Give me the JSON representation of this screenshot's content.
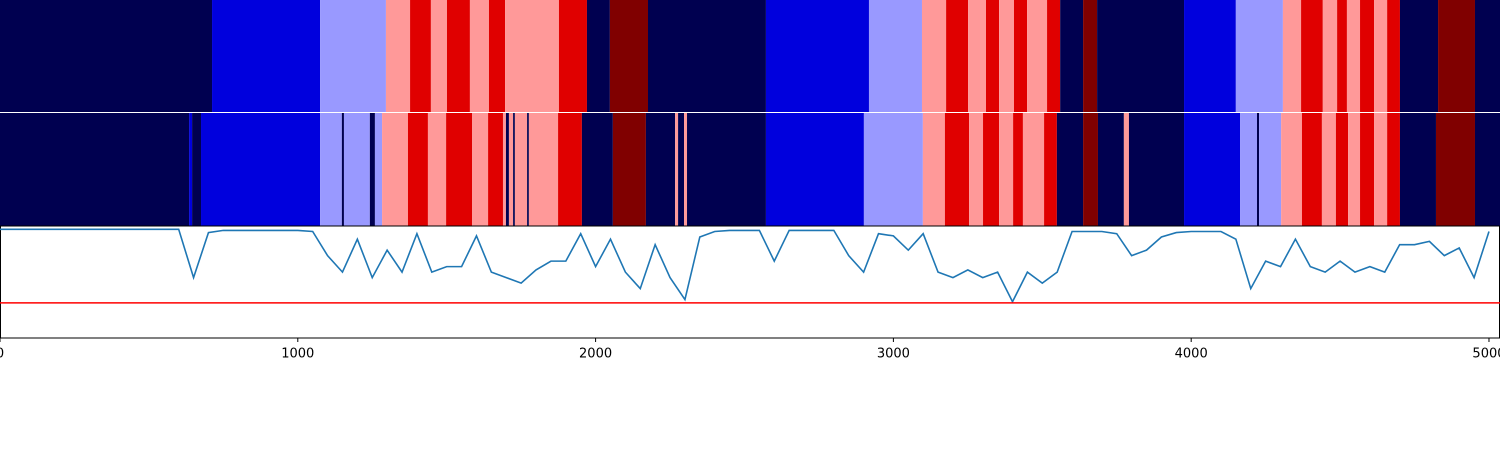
{
  "chart_data": {
    "type": "segmentation",
    "xlim": [
      0,
      5037
    ],
    "xticks": [
      0,
      1000,
      2000,
      3000,
      4000,
      5000
    ],
    "rows": [
      {
        "edges": [
          0,
          712,
          1075,
          1296,
          1377,
          1447,
          1501,
          1578,
          1642,
          1696,
          1877,
          1971,
          2048,
          2176,
          2572,
          2918,
          3096,
          3177,
          3251,
          3311,
          3355,
          3405,
          3449,
          3516,
          3560,
          3637,
          3684,
          3976,
          4150,
          4308,
          4369,
          4442,
          4490,
          4523,
          4567,
          4614,
          4658,
          4701,
          4829,
          4953,
          5037
        ],
        "colors": [
          "#000050",
          "#0000dd",
          "#9999ff",
          "#ff9999",
          "#e00000",
          "#ff9999",
          "#e00000",
          "#ff9999",
          "#e00000",
          "#ff9999",
          "#e00000",
          "#000050",
          "#800000",
          "#000050",
          "#0000dd",
          "#9999ff",
          "#ff9999",
          "#e00000",
          "#ff9999",
          "#e00000",
          "#ff9999",
          "#e00000",
          "#ff9999",
          "#e00000",
          "#000050",
          "#800000",
          "#000050",
          "#0000dd",
          "#9999ff",
          "#ff9999",
          "#e00000",
          "#ff9999",
          "#e00000",
          "#ff9999",
          "#e00000",
          "#ff9999",
          "#e00000",
          "#000050",
          "#800000",
          "#000050"
        ]
      },
      {
        "edges": [
          0,
          635,
          645,
          675,
          1075,
          1148,
          1155,
          1242,
          1259,
          1283,
          1370,
          1437,
          1498,
          1585,
          1639,
          1689,
          1699,
          1709,
          1723,
          1729,
          1770,
          1776,
          1874,
          1954,
          2058,
          2169,
          2267,
          2277,
          2297,
          2307,
          2572,
          2901,
          3099,
          3173,
          3254,
          3301,
          3355,
          3402,
          3435,
          3506,
          3549,
          3637,
          3687,
          3774,
          3791,
          3976,
          4164,
          4221,
          4228,
          4302,
          4372,
          4439,
          4486,
          4527,
          4567,
          4614,
          4658,
          4701,
          4822,
          4953,
          5037
        ],
        "colors": [
          "#000050",
          "#0000dd",
          "#000050",
          "#0000dd",
          "#9999ff",
          "#000050",
          "#9999ff",
          "#000050",
          "#9999ff",
          "#ff9999",
          "#e00000",
          "#ff9999",
          "#e00000",
          "#ff9999",
          "#e00000",
          "#ff9999",
          "#000050",
          "#ff9999",
          "#000050",
          "#ff9999",
          "#000050",
          "#ff9999",
          "#e00000",
          "#000050",
          "#800000",
          "#000050",
          "#ff9999",
          "#000050",
          "#ff9999",
          "#000050",
          "#0000dd",
          "#9999ff",
          "#ff9999",
          "#e00000",
          "#ff9999",
          "#e00000",
          "#ff9999",
          "#e00000",
          "#ff9999",
          "#e00000",
          "#000050",
          "#800000",
          "#000050",
          "#ff9999",
          "#000050",
          "#0000dd",
          "#9999ff",
          "#000050",
          "#9999ff",
          "#ff9999",
          "#e00000",
          "#ff9999",
          "#e00000",
          "#ff9999",
          "#e00000",
          "#ff9999",
          "#e00000",
          "#000050",
          "#800000",
          "#000050"
        ]
      }
    ],
    "ylim": [
      0,
      1.02
    ],
    "series": [
      {
        "color": "#1f77b4",
        "x": [
          0,
          50,
          100,
          150,
          200,
          250,
          300,
          350,
          400,
          450,
          500,
          550,
          600,
          650,
          700,
          750,
          800,
          850,
          900,
          950,
          1000,
          1050,
          1100,
          1150,
          1200,
          1250,
          1300,
          1350,
          1400,
          1450,
          1500,
          1550,
          1600,
          1650,
          1700,
          1750,
          1800,
          1850,
          1900,
          1950,
          2000,
          2050,
          2100,
          2150,
          2200,
          2250,
          2300,
          2350,
          2400,
          2450,
          2500,
          2550,
          2600,
          2650,
          2700,
          2750,
          2800,
          2850,
          2900,
          2950,
          3000,
          3050,
          3100,
          3150,
          3200,
          3250,
          3300,
          3350,
          3400,
          3450,
          3500,
          3550,
          3600,
          3650,
          3700,
          3750,
          3800,
          3850,
          3900,
          3950,
          4000,
          4050,
          4100,
          4150,
          4200,
          4250,
          4300,
          4350,
          4400,
          4450,
          4500,
          4550,
          4600,
          4650,
          4700,
          4750,
          4800,
          4850,
          4900,
          4950,
          5000
        ],
        "values": [
          0.99,
          0.99,
          0.99,
          0.99,
          0.99,
          0.99,
          0.99,
          0.99,
          0.99,
          0.99,
          0.99,
          0.99,
          0.99,
          0.55,
          0.96,
          0.98,
          0.98,
          0.98,
          0.98,
          0.98,
          0.98,
          0.97,
          0.75,
          0.6,
          0.9,
          0.55,
          0.8,
          0.6,
          0.95,
          0.6,
          0.65,
          0.65,
          0.93,
          0.6,
          0.55,
          0.5,
          0.62,
          0.7,
          0.7,
          0.95,
          0.65,
          0.9,
          0.6,
          0.45,
          0.85,
          0.55,
          0.35,
          0.92,
          0.97,
          0.98,
          0.98,
          0.98,
          0.7,
          0.98,
          0.98,
          0.98,
          0.98,
          0.75,
          0.6,
          0.95,
          0.93,
          0.8,
          0.95,
          0.6,
          0.55,
          0.62,
          0.55,
          0.6,
          0.33,
          0.6,
          0.5,
          0.6,
          0.97,
          0.97,
          0.97,
          0.95,
          0.75,
          0.8,
          0.92,
          0.96,
          0.97,
          0.97,
          0.97,
          0.9,
          0.45,
          0.7,
          0.65,
          0.9,
          0.65,
          0.6,
          0.7,
          0.6,
          0.65,
          0.6,
          0.85,
          0.85,
          0.88,
          0.75,
          0.82,
          0.55,
          0.97
        ]
      }
    ],
    "threshold": 0.32,
    "threshold_color": "#ff0000"
  }
}
